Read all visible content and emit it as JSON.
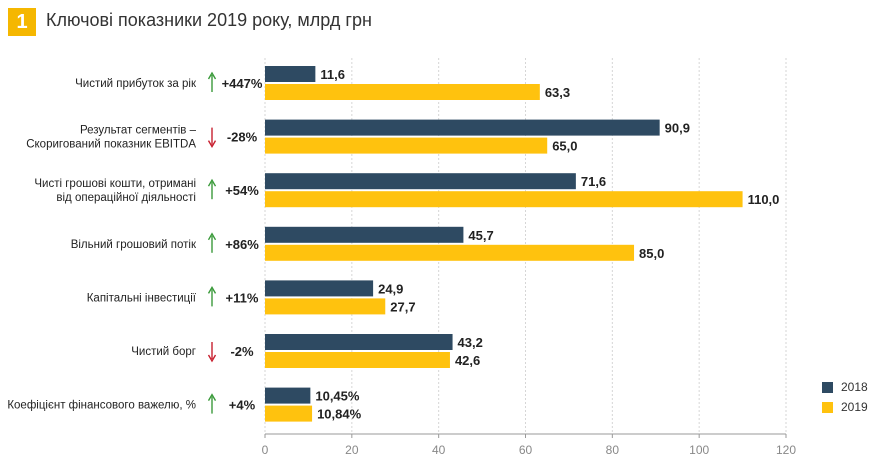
{
  "header": {
    "number": "1",
    "title": "Ключові показники 2019 року, млрд грн"
  },
  "colors": {
    "series_2018": "#2E4A62",
    "series_2019": "#FFC20E",
    "badge": "#F5B700",
    "up_arrow": "#3A9A3A",
    "down_arrow": "#C8202F"
  },
  "chart_data": {
    "type": "bar",
    "orientation": "horizontal",
    "title": "Ключові показники 2019 року, млрд грн",
    "categories": [
      [
        "Чистий прибуток за рік"
      ],
      [
        "Результат сегментів –",
        "Скоригований показник EBITDA"
      ],
      [
        "Чисті грошові кошти, отримані",
        "від операційної діяльності"
      ],
      [
        "Вільний грошовий потік"
      ],
      [
        "Капітальні інвестиції"
      ],
      [
        "Чистий борг"
      ],
      [
        "Коефіцієнт фінансового важелю, %"
      ]
    ],
    "changes": [
      {
        "direction": "up",
        "label": "+447%"
      },
      {
        "direction": "down",
        "label": "-28%"
      },
      {
        "direction": "up",
        "label": "+54%"
      },
      {
        "direction": "up",
        "label": "+86%"
      },
      {
        "direction": "up",
        "label": "+11%"
      },
      {
        "direction": "down",
        "label": "-2%"
      },
      {
        "direction": "up",
        "label": "+4%"
      }
    ],
    "series": [
      {
        "name": "2018",
        "values": [
          11.6,
          90.9,
          71.6,
          45.7,
          24.9,
          43.2,
          10.45
        ],
        "labels": [
          "11,6",
          "90,9",
          "71,6",
          "45,7",
          "24,9",
          "43,2",
          "10,45%"
        ]
      },
      {
        "name": "2019",
        "values": [
          63.3,
          65.0,
          110.0,
          85.0,
          27.7,
          42.6,
          10.84
        ],
        "labels": [
          "63,3",
          "65,0",
          "110,0",
          "85,0",
          "27,7",
          "42,6",
          "10,84%"
        ]
      }
    ],
    "xlim": [
      0,
      120
    ],
    "xticks": [
      0,
      20,
      40,
      60,
      80,
      100,
      120
    ],
    "grid": true,
    "legend_position": "bottom-right"
  }
}
